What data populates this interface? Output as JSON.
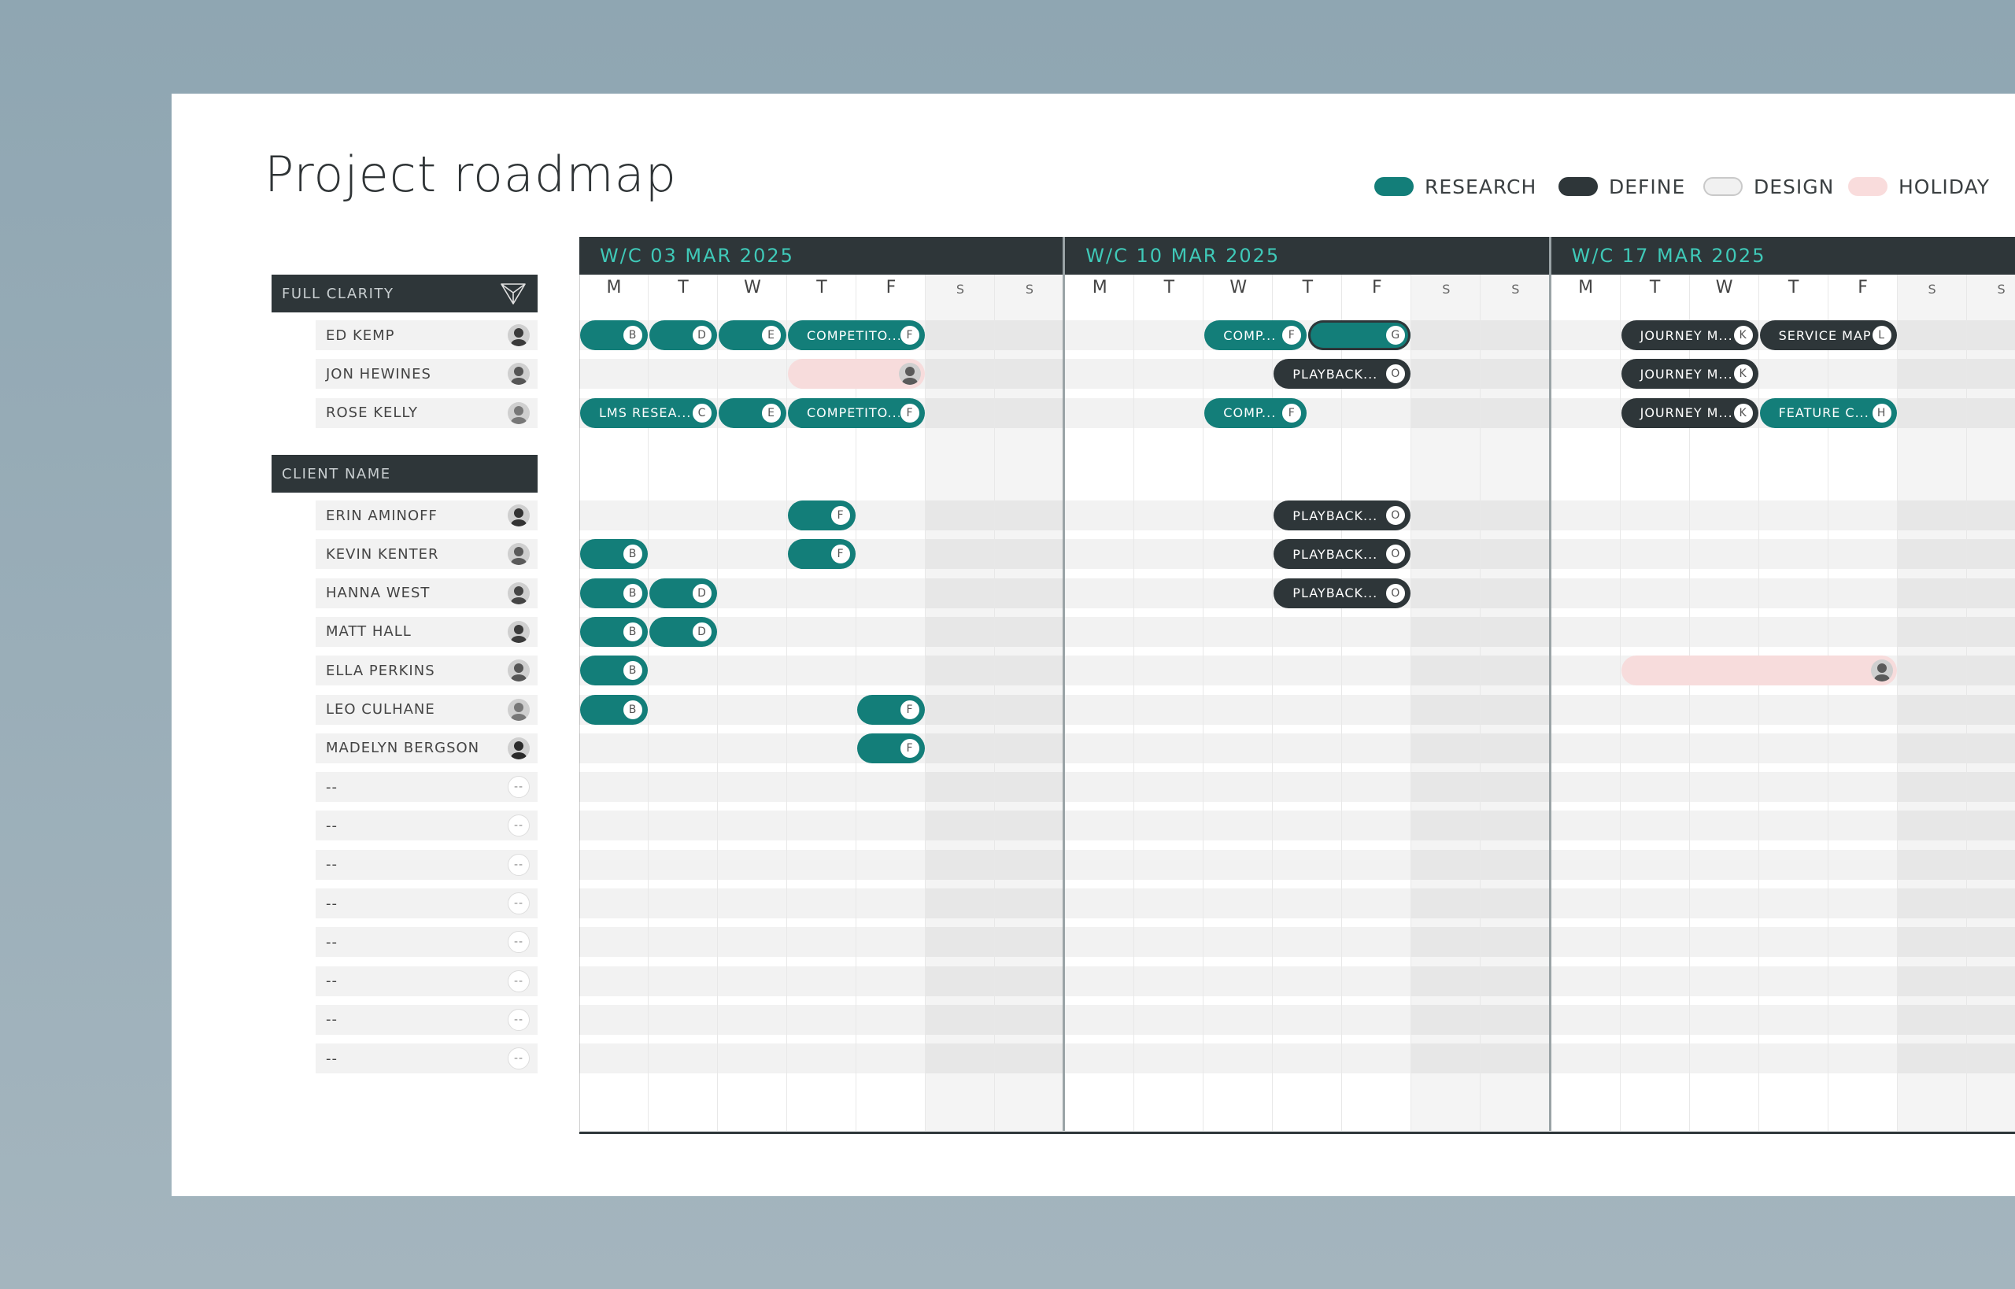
{
  "title": "Project roadmap",
  "legend": [
    {
      "label": "RESEARCH",
      "color": "#137e79"
    },
    {
      "label": "DEFINE",
      "color": "#2e3639"
    },
    {
      "label": "DESIGN",
      "color": "#f1f1f1"
    },
    {
      "label": "HOLIDAY",
      "color": "#f9dcdc"
    }
  ],
  "groups": [
    {
      "name": "FULL CLARITY",
      "icon": "filter-icon",
      "people": [
        {
          "name": "ED KEMP",
          "avatar": "photo"
        },
        {
          "name": "JON HEWINES",
          "avatar": "photo"
        },
        {
          "name": "ROSE KELLY",
          "avatar": "photo"
        }
      ]
    },
    {
      "name": "CLIENT NAME",
      "people": [
        {
          "name": "ERIN AMINOFF",
          "avatar": "photo"
        },
        {
          "name": "KEVIN KENTER",
          "avatar": "photo"
        },
        {
          "name": "HANNA WEST",
          "avatar": "photo"
        },
        {
          "name": "MATT HALL",
          "avatar": "photo"
        },
        {
          "name": "ELLA PERKINS",
          "avatar": "photo"
        },
        {
          "name": "LEO CULHANE",
          "avatar": "photo"
        },
        {
          "name": "MADELYN BERGSON",
          "avatar": "photo"
        },
        {
          "name": "--",
          "avatar": "--"
        },
        {
          "name": "--",
          "avatar": "--"
        },
        {
          "name": "--",
          "avatar": "--"
        },
        {
          "name": "--",
          "avatar": "--"
        },
        {
          "name": "--",
          "avatar": "--"
        },
        {
          "name": "--",
          "avatar": "--"
        },
        {
          "name": "--",
          "avatar": "--"
        },
        {
          "name": "--",
          "avatar": "--"
        }
      ]
    }
  ],
  "weeks": [
    {
      "label": "W/C 03 MAR 2025"
    },
    {
      "label": "W/C 10 MAR 2025"
    },
    {
      "label": "W/C 17 MAR 2025"
    }
  ],
  "days": [
    "M",
    "T",
    "W",
    "T",
    "F",
    "S",
    "S"
  ],
  "tasks": [
    {
      "row": 0,
      "start": 0,
      "span": 1,
      "type": "research",
      "label": "",
      "badge": "B"
    },
    {
      "row": 0,
      "start": 1,
      "span": 1,
      "type": "research",
      "label": "",
      "badge": "D"
    },
    {
      "row": 0,
      "start": 2,
      "span": 1,
      "type": "research",
      "label": "",
      "badge": "E"
    },
    {
      "row": 0,
      "start": 3,
      "span": 2,
      "type": "research",
      "label": "COMPETITO...",
      "badge": "F"
    },
    {
      "row": 0,
      "start": 9,
      "span": 1.5,
      "type": "research",
      "label": "COMP...",
      "badge": "F"
    },
    {
      "row": 0,
      "start": 10.5,
      "span": 1.5,
      "type": "research",
      "label": "",
      "badge": "G",
      "selected": true
    },
    {
      "row": 0,
      "start": 15,
      "span": 2,
      "type": "define",
      "label": "JOURNEY M...",
      "badge": "K"
    },
    {
      "row": 0,
      "start": 17,
      "span": 2,
      "type": "define",
      "label": "SERVICE MAP",
      "badge": "L"
    },
    {
      "row": 1,
      "start": 3,
      "span": 2,
      "type": "holiday",
      "label": "",
      "badge": ""
    },
    {
      "row": 1,
      "start": 10,
      "span": 2,
      "type": "define",
      "label": "PLAYBACK...",
      "badge": "O"
    },
    {
      "row": 1,
      "start": 15,
      "span": 2,
      "type": "define",
      "label": "JOURNEY M...",
      "badge": "K"
    },
    {
      "row": 2,
      "start": 0,
      "span": 2,
      "type": "research",
      "label": "LMS RESEA...",
      "badge": "C"
    },
    {
      "row": 2,
      "start": 2,
      "span": 1,
      "type": "research",
      "label": "",
      "badge": "E"
    },
    {
      "row": 2,
      "start": 3,
      "span": 2,
      "type": "research",
      "label": "COMPETITO...",
      "badge": "F"
    },
    {
      "row": 2,
      "start": 9,
      "span": 1.5,
      "type": "research",
      "label": "COMP...",
      "badge": "F"
    },
    {
      "row": 2,
      "start": 15,
      "span": 2,
      "type": "define",
      "label": "JOURNEY M...",
      "badge": "K"
    },
    {
      "row": 2,
      "start": 17,
      "span": 2,
      "type": "research",
      "label": "FEATURE C...",
      "badge": "H"
    },
    {
      "row": 3,
      "start": 3,
      "span": 1,
      "type": "research",
      "label": "",
      "badge": "F"
    },
    {
      "row": 3,
      "start": 10,
      "span": 2,
      "type": "define",
      "label": "PLAYBACK...",
      "badge": "O"
    },
    {
      "row": 4,
      "start": 0,
      "span": 1,
      "type": "research",
      "label": "",
      "badge": "B"
    },
    {
      "row": 4,
      "start": 3,
      "span": 1,
      "type": "research",
      "label": "",
      "badge": "F"
    },
    {
      "row": 4,
      "start": 10,
      "span": 2,
      "type": "define",
      "label": "PLAYBACK...",
      "badge": "O"
    },
    {
      "row": 5,
      "start": 0,
      "span": 1,
      "type": "research",
      "label": "",
      "badge": "B"
    },
    {
      "row": 5,
      "start": 1,
      "span": 1,
      "type": "research",
      "label": "",
      "badge": "D"
    },
    {
      "row": 5,
      "start": 10,
      "span": 2,
      "type": "define",
      "label": "PLAYBACK...",
      "badge": "O"
    },
    {
      "row": 6,
      "start": 0,
      "span": 1,
      "type": "research",
      "label": "",
      "badge": "B"
    },
    {
      "row": 6,
      "start": 1,
      "span": 1,
      "type": "research",
      "label": "",
      "badge": "D"
    },
    {
      "row": 7,
      "start": 0,
      "span": 1,
      "type": "research",
      "label": "",
      "badge": "B"
    },
    {
      "row": 7,
      "start": 15,
      "span": 4,
      "type": "holiday",
      "label": "",
      "badge": ""
    },
    {
      "row": 8,
      "start": 0,
      "span": 1,
      "type": "research",
      "label": "",
      "badge": "B"
    },
    {
      "row": 8,
      "start": 4,
      "span": 1,
      "type": "research",
      "label": "",
      "badge": "F"
    },
    {
      "row": 9,
      "start": 4,
      "span": 1,
      "type": "research",
      "label": "",
      "badge": "F"
    }
  ]
}
